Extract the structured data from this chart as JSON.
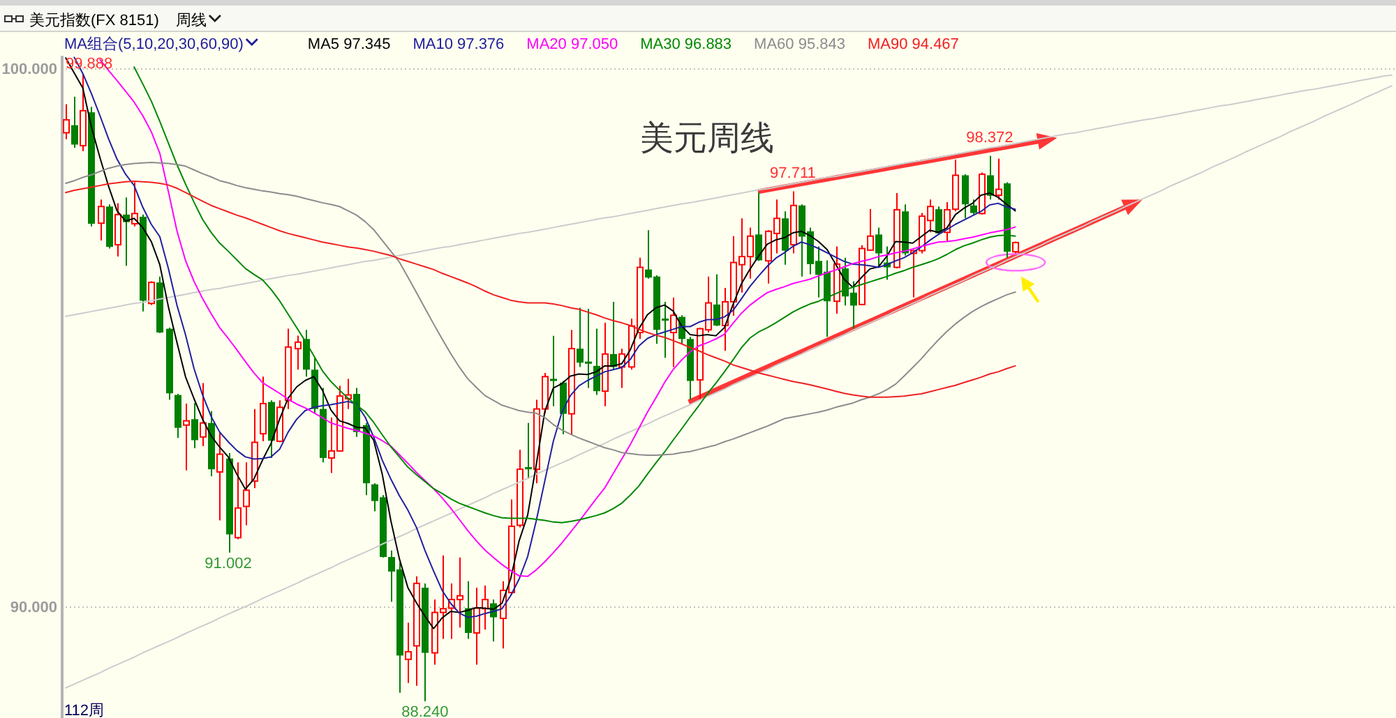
{
  "chart_data": {
    "type": "candlestick",
    "title": "美元周线",
    "subtitle": "美元指数(FX 8151)",
    "xlabel": "112周",
    "legend_title": "MA组合(5,10,20,30,60,90)",
    "legend": "top left",
    "grid": "y",
    "annotations": [
      "周线",
      {
        "text": "99.888",
        "y": 99.888
      },
      {
        "text": "91.002",
        "y": 91.002
      },
      {
        "text": "88.240",
        "y": 88.24
      },
      {
        "text": "97.711",
        "y": 97.711
      },
      {
        "text": "98.372",
        "y": 98.372
      }
    ],
    "ylim": [
      87.93,
      100.23
    ],
    "yticks": [
      {
        "value": 100,
        "label": "100.000"
      },
      {
        "value": 90,
        "label": "90.000"
      }
    ],
    "categories": [
      null,
      null,
      null,
      null,
      null,
      null,
      null,
      null,
      null,
      null,
      null,
      null,
      null,
      null,
      null,
      null,
      null,
      null,
      null,
      null,
      null,
      null,
      null,
      null,
      null,
      null,
      null,
      null,
      null,
      null,
      null,
      null,
      null,
      null,
      null,
      null,
      null,
      null,
      null,
      null,
      null,
      null,
      null,
      null,
      null,
      null,
      null,
      null,
      null,
      null,
      null,
      null,
      null,
      null,
      null,
      null,
      null,
      null,
      null,
      null,
      null,
      null,
      null,
      null,
      null,
      null,
      null,
      null,
      null,
      null,
      null,
      null,
      null,
      null,
      null,
      null,
      null,
      null,
      null,
      null,
      null,
      null,
      null,
      null,
      null,
      null,
      null,
      null,
      null,
      null,
      null,
      null,
      null,
      null,
      null,
      null,
      null,
      null,
      null,
      null,
      null,
      null,
      null,
      null,
      null,
      null,
      null,
      null,
      null,
      null,
      null,
      null,
      null,
      null,
      null,
      null,
      null,
      null,
      null,
      null,
      null,
      null,
      null,
      null,
      null,
      null,
      null,
      null,
      null,
      null,
      null,
      null,
      null,
      null,
      null,
      null,
      null,
      null,
      null,
      null,
      null,
      null,
      null,
      null,
      null,
      null,
      null,
      null,
      null,
      null,
      null,
      null,
      null,
      null,
      null,
      null
    ],
    "ohlc": [
      [
        98.8,
        99.33,
        98.68,
        99.04
      ],
      [
        98.94,
        99.47,
        98.52,
        98.58
      ],
      [
        98.56,
        99.888,
        98.46,
        99.21
      ],
      [
        99.18,
        99.28,
        97.06,
        97.11
      ],
      [
        97.12,
        97.56,
        96.8,
        97.43
      ],
      [
        97.43,
        97.47,
        96.65,
        96.68
      ],
      [
        96.72,
        97.49,
        96.5,
        97.28
      ],
      [
        97.28,
        97.6,
        96.33,
        97.14
      ],
      [
        97.11,
        97.88,
        97.06,
        97.3
      ],
      [
        97.24,
        97.28,
        95.48,
        95.68
      ],
      [
        95.63,
        96.04,
        95.6,
        96.02
      ],
      [
        96.02,
        96.13,
        95.08,
        95.09
      ],
      [
        95.16,
        95.18,
        93.84,
        93.96
      ],
      [
        93.93,
        93.95,
        93.13,
        93.32
      ],
      [
        93.37,
        93.77,
        92.53,
        93.45
      ],
      [
        93.48,
        93.78,
        92.94,
        93.09
      ],
      [
        93.15,
        94.15,
        92.98,
        93.41
      ],
      [
        93.41,
        93.63,
        92.42,
        92.55
      ],
      [
        92.5,
        93.24,
        91.6,
        92.83
      ],
      [
        92.75,
        92.85,
        91.002,
        91.34
      ],
      [
        91.28,
        92.68,
        91.25,
        91.83
      ],
      [
        91.86,
        92.68,
        91.51,
        92.16
      ],
      [
        92.33,
        93.67,
        92.2,
        93.05
      ],
      [
        93.21,
        94.27,
        93.07,
        93.77
      ],
      [
        93.8,
        93.83,
        92.76,
        93.08
      ],
      [
        93.07,
        93.83,
        93.05,
        93.7
      ],
      [
        93.83,
        95.16,
        93.67,
        94.82
      ],
      [
        94.79,
        95.03,
        94.4,
        94.91
      ],
      [
        94.97,
        95.14,
        94.27,
        94.4
      ],
      [
        94.4,
        94.62,
        93.58,
        93.67
      ],
      [
        93.67,
        94.06,
        92.68,
        92.76
      ],
      [
        92.76,
        93.51,
        92.48,
        92.89
      ],
      [
        92.89,
        94.1,
        92.88,
        93.91
      ],
      [
        93.86,
        94.23,
        93.67,
        93.93
      ],
      [
        93.95,
        94.06,
        93.15,
        93.24
      ],
      [
        93.37,
        93.41,
        92.07,
        92.29
      ],
      [
        92.27,
        92.29,
        91.77,
        91.96
      ],
      [
        92.03,
        92.07,
        90.91,
        90.92
      ],
      [
        90.92,
        91.04,
        90.09,
        90.65
      ],
      [
        90.69,
        90.82,
        88.4,
        89.09
      ],
      [
        89.02,
        89.7,
        88.58,
        89.16
      ],
      [
        89.27,
        90.56,
        88.53,
        90.43
      ],
      [
        90.35,
        90.43,
        88.24,
        89.14
      ],
      [
        89.14,
        90.13,
        88.92,
        89.89
      ],
      [
        89.89,
        90.95,
        89.4,
        89.96
      ],
      [
        89.97,
        90.43,
        89.4,
        90.13
      ],
      [
        90.13,
        90.91,
        89.61,
        90.2
      ],
      [
        89.97,
        90.47,
        89.4,
        89.51
      ],
      [
        89.51,
        90.35,
        88.92,
        89.97
      ],
      [
        89.96,
        90.39,
        89.57,
        90.13
      ],
      [
        90.06,
        90.13,
        89.35,
        89.8
      ],
      [
        89.78,
        90.47,
        89.22,
        90.3
      ],
      [
        90.26,
        91.99,
        90.22,
        91.49
      ],
      [
        91.51,
        92.91,
        91.47,
        92.55
      ],
      [
        92.59,
        93.41,
        92.37,
        92.55
      ],
      [
        92.55,
        93.84,
        92.29,
        93.67
      ],
      [
        93.67,
        94.34,
        93.58,
        94.27
      ],
      [
        94.23,
        95.03,
        93.72,
        94.19
      ],
      [
        94.16,
        94.19,
        93.2,
        93.58
      ],
      [
        93.58,
        95.14,
        93.2,
        94.79
      ],
      [
        94.79,
        95.55,
        94.45,
        94.53
      ],
      [
        94.55,
        95.53,
        94.06,
        94.51
      ],
      [
        94.47,
        95.16,
        93.93,
        94.0
      ],
      [
        94.0,
        95.27,
        93.72,
        94.69
      ],
      [
        94.69,
        95.66,
        94.4,
        94.45
      ],
      [
        94.45,
        94.79,
        94.06,
        94.69
      ],
      [
        94.45,
        95.35,
        94.4,
        95.21
      ],
      [
        95.09,
        96.48,
        94.97,
        96.3
      ],
      [
        96.26,
        96.99,
        96.09,
        96.11
      ],
      [
        96.13,
        96.15,
        94.88,
        95.14
      ],
      [
        95.35,
        95.66,
        94.62,
        95.31
      ],
      [
        95.09,
        95.74,
        94.45,
        95.41
      ],
      [
        95.38,
        95.41,
        94.88,
        94.97
      ],
      [
        94.97,
        95.01,
        93.84,
        94.19
      ],
      [
        94.21,
        95.18,
        93.84,
        95.16
      ],
      [
        95.14,
        96.13,
        95.09,
        95.64
      ],
      [
        95.61,
        96.17,
        95.21,
        95.22
      ],
      [
        95.22,
        95.92,
        94.75,
        95.66
      ],
      [
        95.66,
        96.88,
        95.4,
        96.39
      ],
      [
        96.35,
        97.21,
        95.83,
        96.5
      ],
      [
        96.5,
        97.04,
        96.09,
        96.88
      ],
      [
        96.91,
        97.69,
        96.42,
        96.43
      ],
      [
        96.42,
        96.99,
        96.0,
        96.97
      ],
      [
        96.93,
        97.56,
        96.56,
        97.21
      ],
      [
        97.21,
        97.34,
        96.35,
        96.61
      ],
      [
        96.72,
        97.711,
        96.56,
        97.45
      ],
      [
        97.45,
        97.47,
        96.13,
        96.87
      ],
      [
        96.97,
        97.04,
        96.17,
        96.36
      ],
      [
        96.42,
        96.69,
        95.74,
        96.16
      ],
      [
        96.22,
        96.43,
        95.01,
        95.67
      ],
      [
        95.67,
        96.69,
        95.44,
        96.36
      ],
      [
        96.28,
        96.48,
        95.59,
        95.76
      ],
      [
        95.83,
        96.04,
        95.16,
        95.59
      ],
      [
        95.61,
        96.71,
        95.61,
        96.65
      ],
      [
        96.62,
        97.38,
        96.61,
        96.88
      ],
      [
        96.91,
        97.04,
        96.3,
        96.56
      ],
      [
        96.39,
        96.69,
        96.07,
        96.3
      ],
      [
        96.3,
        97.68,
        96.28,
        97.37
      ],
      [
        97.34,
        97.47,
        96.52,
        96.56
      ],
      [
        96.56,
        96.62,
        95.74,
        96.61
      ],
      [
        96.61,
        97.31,
        96.56,
        97.25
      ],
      [
        97.17,
        97.56,
        96.95,
        97.43
      ],
      [
        97.38,
        97.43,
        96.91,
        96.93
      ],
      [
        96.95,
        97.51,
        96.78,
        97.37
      ],
      [
        97.38,
        98.3,
        97.34,
        98.01
      ],
      [
        98.01,
        98.03,
        97.21,
        97.47
      ],
      [
        97.45,
        97.56,
        97.28,
        97.31
      ],
      [
        97.3,
        98.06,
        97.28,
        98.03
      ],
      [
        98.01,
        98.372,
        97.56,
        97.63
      ],
      [
        97.64,
        98.32,
        97.56,
        97.75
      ],
      [
        97.86,
        97.88,
        96.48,
        96.59
      ],
      [
        96.59,
        96.78,
        96.56,
        96.76
      ],
      null,
      null,
      null,
      null,
      null,
      null,
      null,
      null,
      null,
      null,
      null,
      null,
      null,
      null,
      null,
      null,
      null,
      null,
      null,
      null,
      null,
      null,
      null,
      null,
      null,
      null,
      null,
      null,
      null,
      null,
      null,
      null,
      null,
      null,
      null,
      null,
      null,
      null,
      null,
      null,
      null,
      null,
      null,
      null
    ],
    "colors": [
      "#ff0000",
      "#008000",
      "#ff0000",
      "#008000",
      "#ff0000",
      "#008000",
      "#ff0000",
      "#008000",
      "#ff0000",
      "#008000",
      "#ff0000",
      "#008000",
      "#008000",
      "#008000",
      "#ff0000",
      "#008000",
      "#ff0000",
      "#008000",
      "#ff0000",
      "#008000",
      "#ff0000",
      "#ff0000",
      "#ff0000",
      "#ff0000",
      "#008000",
      "#ff0000",
      "#ff0000",
      "#ff0000",
      "#008000",
      "#008000",
      "#008000",
      "#ff0000",
      "#ff0000",
      "#ff0000",
      "#008000",
      "#008000",
      "#008000",
      "#008000",
      "#008000",
      "#008000",
      "#ff0000",
      "#ff0000",
      "#008000",
      "#ff0000",
      "#ff0000",
      "#ff0000",
      "#ff0000",
      "#008000",
      "#ff0000",
      "#ff0000",
      "#008000",
      "#ff0000",
      "#ff0000",
      "#ff0000",
      "#008000",
      "#ff0000",
      "#ff0000",
      "#008000",
      "#008000",
      "#ff0000",
      "#008000",
      "#008000",
      "#008000",
      "#ff0000",
      "#008000",
      "#ff0000",
      "#ff0000",
      "#ff0000",
      "#008000",
      "#008000",
      "#008000",
      "#ff0000",
      "#008000",
      "#008000",
      "#ff0000",
      "#ff0000",
      "#008000",
      "#ff0000",
      "#ff0000",
      "#ff0000",
      "#ff0000",
      "#008000",
      "#ff0000",
      "#ff0000",
      "#008000",
      "#ff0000",
      "#008000",
      "#008000",
      "#008000",
      "#008000",
      "#ff0000",
      "#008000",
      "#008000",
      "#ff0000",
      "#ff0000",
      "#008000",
      "#008000",
      "#ff0000",
      "#008000",
      "#ff0000",
      "#ff0000",
      "#ff0000",
      "#008000",
      "#ff0000",
      "#ff0000",
      "#008000",
      "#008000",
      "#ff0000",
      "#008000",
      "#ff0000",
      "#008000",
      "#ff0000",
      null,
      null,
      null,
      null,
      null,
      null,
      null,
      null,
      null,
      null,
      null,
      null,
      null,
      null,
      null,
      null,
      null,
      null,
      null,
      null,
      null,
      null,
      null,
      null,
      null,
      null,
      null,
      null,
      null,
      null,
      null,
      null,
      null,
      null,
      null,
      null,
      null,
      null,
      null,
      null,
      null,
      null,
      null,
      null
    ],
    "series": [
      {
        "type": "line",
        "color": "#cccccc",
        "values": [
          95.39,
          95.42,
          95.45,
          95.48,
          95.51,
          95.54,
          95.57,
          95.6,
          95.63,
          95.65,
          95.68,
          95.71,
          95.74,
          95.77,
          95.8,
          95.83,
          95.86,
          95.89,
          95.91,
          95.94,
          95.97,
          96.0,
          96.03,
          96.06,
          96.09,
          96.12,
          96.15,
          96.17,
          96.2,
          96.23,
          96.26,
          96.29,
          96.32,
          96.35,
          96.38,
          96.41,
          96.43,
          96.46,
          96.49,
          96.52,
          96.55,
          96.58,
          96.61,
          96.64,
          96.67,
          96.69,
          96.72,
          96.75,
          96.78,
          96.81,
          96.84,
          96.87,
          96.9,
          96.93,
          96.95,
          96.98,
          97.01,
          97.04,
          97.07,
          97.1,
          97.13,
          97.16,
          97.19,
          97.22,
          97.24,
          97.27,
          97.3,
          97.33,
          97.36,
          97.39,
          97.42,
          97.45,
          97.48,
          97.5,
          97.53,
          97.56,
          97.59,
          97.62,
          97.65,
          97.68,
          97.71,
          97.74,
          97.76,
          97.79,
          97.82,
          97.85,
          97.88,
          97.91,
          97.94,
          97.97,
          97.99,
          98.02,
          98.05,
          98.08,
          98.11,
          98.14,
          98.17,
          98.2,
          98.23,
          98.26,
          98.28,
          98.31,
          98.34,
          98.37,
          98.4,
          98.43,
          98.46,
          98.49,
          98.52,
          98.54,
          98.57,
          98.6,
          98.63,
          98.66,
          98.69,
          98.72,
          98.75,
          98.78,
          98.8,
          98.83,
          98.86,
          98.89,
          98.92,
          98.95,
          98.98,
          99.01,
          99.04,
          99.06,
          99.09,
          99.12,
          99.15,
          99.18,
          99.21,
          99.24,
          99.27,
          99.3,
          99.32,
          99.35,
          99.38,
          99.41,
          99.44,
          99.47,
          99.5,
          99.53,
          99.56,
          99.59,
          99.61,
          99.64,
          99.67,
          99.7,
          99.73,
          99.76,
          99.79,
          99.82,
          99.85,
          99.87
        ]
      },
      {
        "type": "line",
        "color": "#cccccc",
        "values": [
          88.49,
          88.56,
          88.63,
          88.7,
          88.77,
          88.85,
          88.92,
          88.99,
          89.06,
          89.14,
          89.21,
          89.28,
          89.35,
          89.42,
          89.5,
          89.57,
          89.64,
          89.71,
          89.79,
          89.86,
          89.93,
          90.0,
          90.07,
          90.15,
          90.22,
          90.29,
          90.36,
          90.43,
          90.51,
          90.58,
          90.65,
          90.72,
          90.8,
          90.87,
          90.94,
          91.01,
          91.08,
          91.16,
          91.23,
          91.3,
          91.37,
          91.45,
          91.52,
          91.59,
          91.66,
          91.73,
          91.81,
          91.88,
          91.95,
          92.02,
          92.1,
          92.17,
          92.24,
          92.31,
          92.38,
          92.46,
          92.53,
          92.6,
          92.67,
          92.74,
          92.82,
          92.89,
          92.96,
          93.03,
          93.11,
          93.18,
          93.25,
          93.32,
          93.39,
          93.47,
          93.54,
          93.61,
          93.68,
          93.75,
          93.83,
          93.9,
          93.97,
          94.04,
          94.12,
          94.19,
          94.26,
          94.33,
          94.4,
          94.48,
          94.55,
          94.62,
          94.69,
          94.77,
          94.84,
          94.91,
          94.98,
          95.05,
          95.13,
          95.2,
          95.27,
          95.34,
          95.41,
          95.49,
          95.56,
          95.63,
          95.7,
          95.78,
          95.85,
          95.92,
          95.99,
          96.06,
          96.14,
          96.21,
          96.28,
          96.35,
          96.43,
          96.5,
          96.57,
          96.64,
          96.71,
          96.79,
          96.86,
          96.93,
          97.0,
          97.07,
          97.15,
          97.22,
          97.29,
          97.36,
          97.44,
          97.51,
          97.58,
          97.65,
          97.72,
          97.8,
          97.87,
          97.94,
          98.01,
          98.08,
          98.16,
          98.23,
          98.3,
          98.37,
          98.45,
          98.52,
          98.59,
          98.66,
          98.73,
          98.81,
          98.88,
          98.95,
          99.02,
          99.1,
          99.17,
          99.24,
          99.31,
          99.38,
          99.46,
          99.53,
          99.6,
          99.67
        ]
      },
      {
        "name": "MA5 97.345",
        "type": "line",
        "color": "#000000",
        "values": [
          100.19,
          99.91,
          99.63,
          98.91,
          98.34,
          97.81,
          97.35,
          97.16,
          97.21,
          97.04,
          96.78,
          96.35,
          95.57,
          94.91,
          94.27,
          93.86,
          93.48,
          93.17,
          92.96,
          92.78,
          92.46,
          92.18,
          92.37,
          92.72,
          93.03,
          93.48,
          93.87,
          94.08,
          94.2,
          94.27,
          94.02,
          93.65,
          93.45,
          93.4,
          93.33,
          93.32,
          93.09,
          92.46,
          91.6,
          90.89,
          90.35,
          90.07,
          89.82,
          89.59,
          89.79,
          89.91,
          89.89,
          89.93,
          89.98,
          89.97,
          89.95,
          90.06,
          90.51,
          91.22,
          91.7,
          92.63,
          93.62,
          94.06,
          94.14,
          94.28,
          94.32,
          94.31,
          94.36,
          94.47,
          94.47,
          94.51,
          94.77,
          95.16,
          95.42,
          95.55,
          95.6,
          95.49,
          95.21,
          95.05,
          95.03,
          95.05,
          95.03,
          95.18,
          95.61,
          96.0,
          96.27,
          96.51,
          96.73,
          96.81,
          96.85,
          96.94,
          96.97,
          96.89,
          96.78,
          96.63,
          96.36,
          96.08,
          95.93,
          96.11,
          96.27,
          96.31,
          96.51,
          96.78,
          96.77,
          96.75,
          96.87,
          96.99,
          96.95,
          97.03,
          97.28,
          97.4,
          97.49,
          97.64,
          97.68,
          97.6,
          97.47,
          97.35,
          null,
          null,
          null,
          null,
          null,
          null,
          null,
          null,
          null,
          null,
          null,
          null,
          null,
          null,
          null,
          null,
          null,
          null,
          null,
          null,
          null,
          null,
          null,
          null,
          null,
          null,
          null,
          null,
          null,
          null,
          null,
          null,
          null,
          null,
          null,
          null,
          null,
          null,
          null,
          null,
          null,
          null,
          null,
          null
        ]
      },
      {
        "name": "MA10 97.376",
        "type": "line",
        "color": "#2020a0",
        "values": [
          null,
          100.2,
          99.9,
          99.53,
          99.12,
          98.69,
          98.31,
          98.03,
          97.82,
          97.42,
          97.1,
          96.87,
          96.28,
          95.6,
          95.05,
          94.42,
          93.93,
          93.53,
          93.24,
          93.06,
          92.9,
          92.78,
          92.74,
          92.75,
          92.78,
          92.92,
          93.24,
          93.48,
          93.64,
          93.7,
          93.73,
          93.75,
          93.78,
          93.81,
          93.76,
          93.52,
          93.15,
          92.72,
          92.37,
          92.06,
          91.79,
          91.47,
          91.04,
          90.66,
          90.3,
          90.06,
          89.88,
          89.8,
          89.82,
          89.87,
          89.91,
          89.96,
          90.2,
          90.51,
          90.93,
          91.59,
          92.33,
          93.07,
          93.61,
          93.92,
          94.1,
          94.2,
          94.28,
          94.36,
          94.4,
          94.44,
          94.59,
          94.84,
          94.98,
          95.05,
          95.1,
          95.15,
          95.2,
          95.2,
          95.28,
          95.33,
          95.33,
          95.38,
          95.5,
          95.72,
          95.95,
          96.14,
          96.32,
          96.47,
          96.57,
          96.69,
          96.77,
          96.72,
          96.65,
          96.57,
          96.49,
          96.41,
          96.36,
          96.35,
          96.33,
          96.3,
          96.35,
          96.42,
          96.48,
          96.57,
          96.68,
          96.8,
          96.91,
          97.0,
          97.1,
          97.18,
          97.26,
          97.34,
          97.46,
          97.49,
          97.42,
          97.38,
          null,
          null,
          null,
          null,
          null,
          null,
          null,
          null,
          null,
          null,
          null,
          null,
          null,
          null,
          null,
          null,
          null,
          null,
          null,
          null,
          null,
          null,
          null,
          null,
          null,
          null,
          null,
          null,
          null,
          null,
          null,
          null,
          null,
          null,
          null,
          null,
          null,
          null,
          null,
          null,
          null,
          null,
          null,
          null
        ]
      },
      {
        "name": "MA20 97.050",
        "type": "line",
        "color": "#ff00ff",
        "values": [
          null,
          null,
          null,
          null,
          100.16,
          99.96,
          99.77,
          99.57,
          99.37,
          99.12,
          98.82,
          98.42,
          97.71,
          96.98,
          96.43,
          96.04,
          95.72,
          95.44,
          95.18,
          94.98,
          94.77,
          94.55,
          94.34,
          94.16,
          94.06,
          93.96,
          93.85,
          93.76,
          93.69,
          93.6,
          93.51,
          93.41,
          93.36,
          93.31,
          93.27,
          93.22,
          93.17,
          93.08,
          92.98,
          92.82,
          92.66,
          92.49,
          92.34,
          92.19,
          92.02,
          91.83,
          91.62,
          91.41,
          91.22,
          91.05,
          90.91,
          90.78,
          90.67,
          90.57,
          90.56,
          90.68,
          90.83,
          91.0,
          91.18,
          91.38,
          91.58,
          91.79,
          92.0,
          92.2,
          92.47,
          92.74,
          93.01,
          93.31,
          93.61,
          93.88,
          94.16,
          94.4,
          94.58,
          94.73,
          94.84,
          94.9,
          94.97,
          95.06,
          95.26,
          95.45,
          95.6,
          95.72,
          95.83,
          95.89,
          95.94,
          96.0,
          96.04,
          96.08,
          96.14,
          96.2,
          96.25,
          96.31,
          96.37,
          96.41,
          96.45,
          96.5,
          96.53,
          96.57,
          96.6,
          96.64,
          96.69,
          96.73,
          96.77,
          96.78,
          96.8,
          96.83,
          96.86,
          96.9,
          96.94,
          96.97,
          97.0,
          97.05,
          null,
          null,
          null,
          null,
          null,
          null,
          null,
          null,
          null,
          null,
          null,
          null,
          null,
          null,
          null,
          null,
          null,
          null,
          null,
          null,
          null,
          null,
          null,
          null,
          null,
          null,
          null,
          null,
          null,
          null,
          null,
          null,
          null,
          null,
          null,
          null,
          null,
          null,
          null,
          null,
          null,
          null,
          null,
          null
        ]
      },
      {
        "name": "MA30 96.883",
        "type": "line",
        "color": "#008800",
        "values": [
          null,
          null,
          null,
          null,
          null,
          null,
          null,
          null,
          100.02,
          99.71,
          99.39,
          99.01,
          98.61,
          98.21,
          97.85,
          97.51,
          97.19,
          96.95,
          96.75,
          96.6,
          96.44,
          96.28,
          96.17,
          96.07,
          95.89,
          95.68,
          95.43,
          95.18,
          94.93,
          94.66,
          94.38,
          94.18,
          94.02,
          93.87,
          93.74,
          93.62,
          93.42,
          93.19,
          92.97,
          92.78,
          92.59,
          92.45,
          92.32,
          92.19,
          92.1,
          92.0,
          91.92,
          91.86,
          91.8,
          91.74,
          91.69,
          91.65,
          91.64,
          91.64,
          91.64,
          91.62,
          91.6,
          91.57,
          91.56,
          91.58,
          91.61,
          91.65,
          91.69,
          91.74,
          91.82,
          91.92,
          92.07,
          92.24,
          92.46,
          92.67,
          92.87,
          93.09,
          93.3,
          93.52,
          93.73,
          93.95,
          94.15,
          94.36,
          94.58,
          94.81,
          94.99,
          95.1,
          95.18,
          95.27,
          95.37,
          95.47,
          95.55,
          95.62,
          95.67,
          95.74,
          95.81,
          95.88,
          95.93,
          95.98,
          96.03,
          96.08,
          96.13,
          96.19,
          96.24,
          96.3,
          96.35,
          96.4,
          96.46,
          96.54,
          96.63,
          96.7,
          96.75,
          96.81,
          96.86,
          96.89,
          96.9,
          96.88,
          null,
          null,
          null,
          null,
          null,
          null,
          null,
          null,
          null,
          null,
          null,
          null,
          null,
          null,
          null,
          null,
          null,
          null,
          null,
          null,
          null,
          null,
          null,
          null,
          null,
          null,
          null,
          null,
          null,
          null,
          null,
          null,
          null,
          null,
          null,
          null,
          null,
          null,
          null,
          null,
          null,
          null,
          null,
          null
        ]
      },
      {
        "name": "MA60 95.843",
        "type": "line",
        "color": "#8c8c8c",
        "values": [
          97.86,
          97.91,
          97.97,
          98.02,
          98.08,
          98.14,
          98.18,
          98.21,
          98.23,
          98.24,
          98.25,
          98.24,
          98.23,
          98.21,
          98.18,
          98.11,
          98.04,
          97.98,
          97.91,
          97.87,
          97.82,
          97.78,
          97.75,
          97.72,
          97.7,
          97.67,
          97.65,
          97.62,
          97.58,
          97.54,
          97.5,
          97.47,
          97.43,
          97.35,
          97.27,
          97.15,
          97.0,
          96.8,
          96.6,
          96.4,
          96.12,
          95.83,
          95.54,
          95.25,
          94.97,
          94.7,
          94.45,
          94.23,
          94.07,
          93.92,
          93.83,
          93.74,
          93.69,
          93.64,
          93.61,
          93.59,
          93.51,
          93.38,
          93.28,
          93.2,
          93.13,
          93.07,
          93.01,
          92.95,
          92.91,
          92.86,
          92.84,
          92.82,
          92.81,
          92.81,
          92.82,
          92.83,
          92.86,
          92.88,
          92.92,
          92.96,
          93.0,
          93.06,
          93.11,
          93.17,
          93.23,
          93.29,
          93.35,
          93.42,
          93.49,
          93.52,
          93.55,
          93.58,
          93.61,
          93.65,
          93.7,
          93.74,
          93.78,
          93.84,
          93.89,
          93.95,
          94.03,
          94.13,
          94.28,
          94.44,
          94.6,
          94.78,
          94.95,
          95.11,
          95.25,
          95.37,
          95.48,
          95.57,
          95.65,
          95.72,
          95.79,
          95.84,
          null,
          null,
          null,
          null,
          null,
          null,
          null,
          null,
          null,
          null,
          null,
          null,
          null,
          null,
          null,
          null,
          null,
          null,
          null,
          null,
          null,
          null,
          null,
          null,
          null,
          null,
          null,
          null,
          null,
          null,
          null,
          null,
          null,
          null,
          null,
          null,
          null,
          null,
          null,
          null,
          null,
          null,
          null,
          null
        ]
      },
      {
        "name": "MA90 94.467",
        "type": "line",
        "color": "#f02020",
        "values": [
          97.69,
          97.73,
          97.76,
          97.79,
          97.82,
          97.85,
          97.87,
          97.89,
          97.9,
          97.89,
          97.88,
          97.86,
          97.83,
          97.77,
          97.69,
          97.61,
          97.53,
          97.45,
          97.39,
          97.33,
          97.27,
          97.22,
          97.16,
          97.1,
          97.04,
          96.98,
          96.93,
          96.89,
          96.85,
          96.81,
          96.77,
          96.74,
          96.71,
          96.68,
          96.66,
          96.63,
          96.6,
          96.56,
          96.52,
          96.46,
          96.41,
          96.36,
          96.31,
          96.26,
          96.19,
          96.13,
          96.07,
          96.01,
          95.94,
          95.86,
          95.79,
          95.74,
          95.69,
          95.66,
          95.64,
          95.64,
          95.64,
          95.62,
          95.59,
          95.55,
          95.52,
          95.47,
          95.42,
          95.36,
          95.31,
          95.27,
          95.22,
          95.15,
          95.09,
          95.04,
          95.0,
          94.94,
          94.88,
          94.81,
          94.75,
          94.68,
          94.62,
          94.56,
          94.49,
          94.44,
          94.39,
          94.34,
          94.3,
          94.26,
          94.22,
          94.18,
          94.15,
          94.12,
          94.08,
          94.04,
          94.0,
          93.96,
          93.93,
          93.91,
          93.89,
          93.89,
          93.89,
          93.9,
          93.91,
          93.93,
          93.95,
          93.99,
          94.03,
          94.07,
          94.11,
          94.16,
          94.21,
          94.26,
          94.32,
          94.36,
          94.42,
          94.47,
          null,
          null,
          null,
          null,
          null,
          null,
          null,
          null,
          null,
          null,
          null,
          null,
          null,
          null,
          null,
          null,
          null,
          null,
          null,
          null,
          null,
          null,
          null,
          null,
          null,
          null,
          null,
          null,
          null,
          null,
          null,
          null,
          null,
          null,
          null,
          null,
          null,
          null,
          null,
          null,
          null,
          null,
          null,
          null
        ]
      }
    ]
  }
}
